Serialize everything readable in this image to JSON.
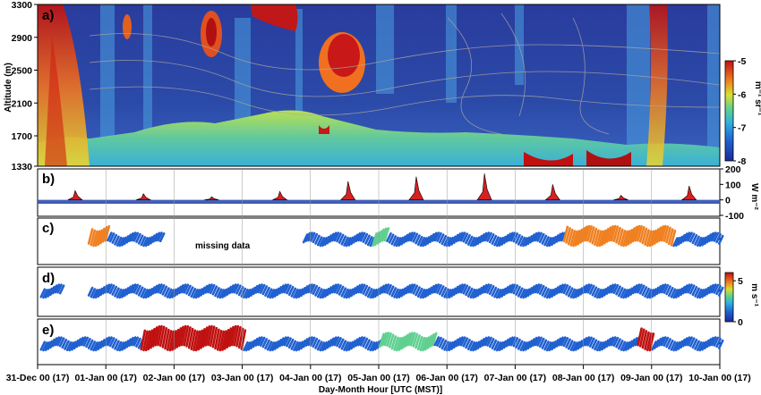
{
  "chart_data": {
    "type": "multi-panel time series",
    "x_axis": {
      "label": "Day-Month Hour [UTC (MST)]",
      "ticks": [
        "31-Dec 00 (17)",
        "01-Jan 00 (17)",
        "02-Jan 00 (17)",
        "03-Jan 00 (17)",
        "04-Jan 00 (17)",
        "05-Jan 00 (17)",
        "06-Jan 00 (17)",
        "07-Jan 00 (17)",
        "08-Jan 00 (17)",
        "09-Jan 00 (17)",
        "10-Jan 00 (17)"
      ],
      "range_days": [
        0,
        10
      ]
    },
    "panels": [
      {
        "id": "a",
        "label": "a)",
        "type": "heatmap",
        "ylabel": "Altitude (m)",
        "yticks": [
          "3300",
          "2900",
          "2500",
          "2100",
          "1700",
          "1330"
        ],
        "ylim": [
          1330,
          3300
        ],
        "colorbar": {
          "ticks": [
            "-5",
            "-6",
            "-7",
            "-8"
          ],
          "label": "m⁻¹ sr⁻¹",
          "range": [
            -8,
            -5
          ]
        },
        "ground_level_peaks": [
          {
            "day": 0.1,
            "altitude": 2300
          },
          {
            "day": 5.3,
            "altitude": 1700
          },
          {
            "day": 8.1,
            "altitude": 1750
          },
          {
            "day": 9.0,
            "altitude": 1750
          }
        ],
        "high_signal_layers": [
          {
            "day_start": 2.55,
            "day_end": 3.5,
            "altitude": 3200
          },
          {
            "day_start": 4.55,
            "day_end": 5.1,
            "altitude": 2800
          },
          {
            "day_start": 7.3,
            "day_end": 7.9,
            "altitude": 1400
          },
          {
            "day_start": 8.6,
            "day_end": 9.1,
            "altitude": 1420
          },
          {
            "day_start": 2.0,
            "day_end": 2.2,
            "altitude": 3000
          }
        ]
      },
      {
        "id": "b",
        "label": "b)",
        "type": "area",
        "ylabel": "W m⁻²",
        "yticks": [
          "200",
          "100",
          "0",
          "-100"
        ],
        "ylim": [
          -100,
          200
        ],
        "daily_peaks": [
          {
            "day": 0.55,
            "value": 60
          },
          {
            "day": 1.55,
            "value": 40
          },
          {
            "day": 2.55,
            "value": 20
          },
          {
            "day": 3.55,
            "value": 55
          },
          {
            "day": 4.55,
            "value": 120
          },
          {
            "day": 5.55,
            "value": 150
          },
          {
            "day": 6.55,
            "value": 170
          },
          {
            "day": 7.55,
            "value": 100
          },
          {
            "day": 8.55,
            "value": 30
          },
          {
            "day": 9.55,
            "value": 90
          }
        ],
        "night_value": -25
      },
      {
        "id": "c",
        "label": "c)",
        "type": "wind barbs",
        "annotation": "missing data",
        "segments": [
          {
            "day_start": 0.75,
            "day_end": 1.8
          },
          {
            "day_start": 3.9,
            "day_end": 10.0
          }
        ]
      },
      {
        "id": "d",
        "label": "d)",
        "type": "wind barbs",
        "colorbar": {
          "ticks": [
            "5",
            "0"
          ],
          "label": "m s⁻¹",
          "range": [
            0,
            6
          ]
        }
      },
      {
        "id": "e",
        "label": "e)",
        "type": "wind barbs",
        "strong_wind_periods": [
          {
            "day_start": 1.5,
            "day_end": 3.0,
            "speed": 6
          },
          {
            "day_start": 5.0,
            "day_end": 5.8,
            "speed": 3
          },
          {
            "day_start": 8.8,
            "day_end": 9.0,
            "speed": 5
          }
        ]
      }
    ]
  }
}
